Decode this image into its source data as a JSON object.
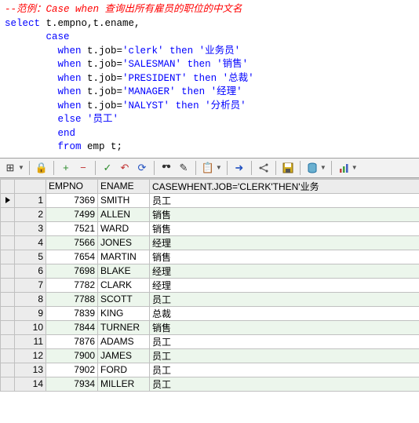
{
  "code": {
    "comment": "--范例：Case when 查询出所有雇员的职位的中文名",
    "select_kw": "select",
    "select_cols": " t.empno,t.ename,",
    "case_kw": "case",
    "whens": [
      {
        "when": "when",
        "cond": " t.job=",
        "lit": "'clerk'",
        "then": " then ",
        "val": "'业务员'"
      },
      {
        "when": "when",
        "cond": " t.job=",
        "lit": "'SALESMAN'",
        "then": " then ",
        "val": "'销售'"
      },
      {
        "when": "when",
        "cond": " t.job=",
        "lit": "'PRESIDENT'",
        "then": " then ",
        "val": "'总裁'"
      },
      {
        "when": "when",
        "cond": " t.job=",
        "lit": "'MANAGER'",
        "then": " then ",
        "val": "'经理'"
      },
      {
        "when": "when",
        "cond": " t.job=",
        "lit": "'NALYST'",
        "then": " then ",
        "val": "'分析员'"
      }
    ],
    "else_kw": "else ",
    "else_val": "'员工'",
    "end_kw": "end",
    "from_kw": "from",
    "from_rest": " emp t;"
  },
  "columns": {
    "empno": "EMPNO",
    "ename": "ENAME",
    "case": "CASEWHENT.JOB='CLERK'THEN'业务"
  },
  "rows": [
    {
      "n": "1",
      "empno": "7369",
      "ename": "SMITH",
      "role": "员工",
      "marker": true
    },
    {
      "n": "2",
      "empno": "7499",
      "ename": "ALLEN",
      "role": "销售"
    },
    {
      "n": "3",
      "empno": "7521",
      "ename": "WARD",
      "role": "销售"
    },
    {
      "n": "4",
      "empno": "7566",
      "ename": "JONES",
      "role": "经理"
    },
    {
      "n": "5",
      "empno": "7654",
      "ename": "MARTIN",
      "role": "销售"
    },
    {
      "n": "6",
      "empno": "7698",
      "ename": "BLAKE",
      "role": "经理"
    },
    {
      "n": "7",
      "empno": "7782",
      "ename": "CLARK",
      "role": "经理"
    },
    {
      "n": "8",
      "empno": "7788",
      "ename": "SCOTT",
      "role": "员工"
    },
    {
      "n": "9",
      "empno": "7839",
      "ename": "KING",
      "role": "总裁"
    },
    {
      "n": "10",
      "empno": "7844",
      "ename": "TURNER",
      "role": "销售"
    },
    {
      "n": "11",
      "empno": "7876",
      "ename": "ADAMS",
      "role": "员工"
    },
    {
      "n": "12",
      "empno": "7900",
      "ename": "JAMES",
      "role": "员工"
    },
    {
      "n": "13",
      "empno": "7902",
      "ename": "FORD",
      "role": "员工"
    },
    {
      "n": "14",
      "empno": "7934",
      "ename": "MILLER",
      "role": "员工"
    }
  ],
  "toolbar": {
    "grid": "⊞",
    "lock": "🔒",
    "add": "+",
    "del": "−",
    "commit": "✓",
    "rollback": "↶",
    "refresh": "⟳",
    "find": "👁",
    "edit": "✎",
    "copy": "📋",
    "export": "➜",
    "link": "⚙",
    "save": "💾",
    "db": "🗄",
    "chart": "📊"
  }
}
